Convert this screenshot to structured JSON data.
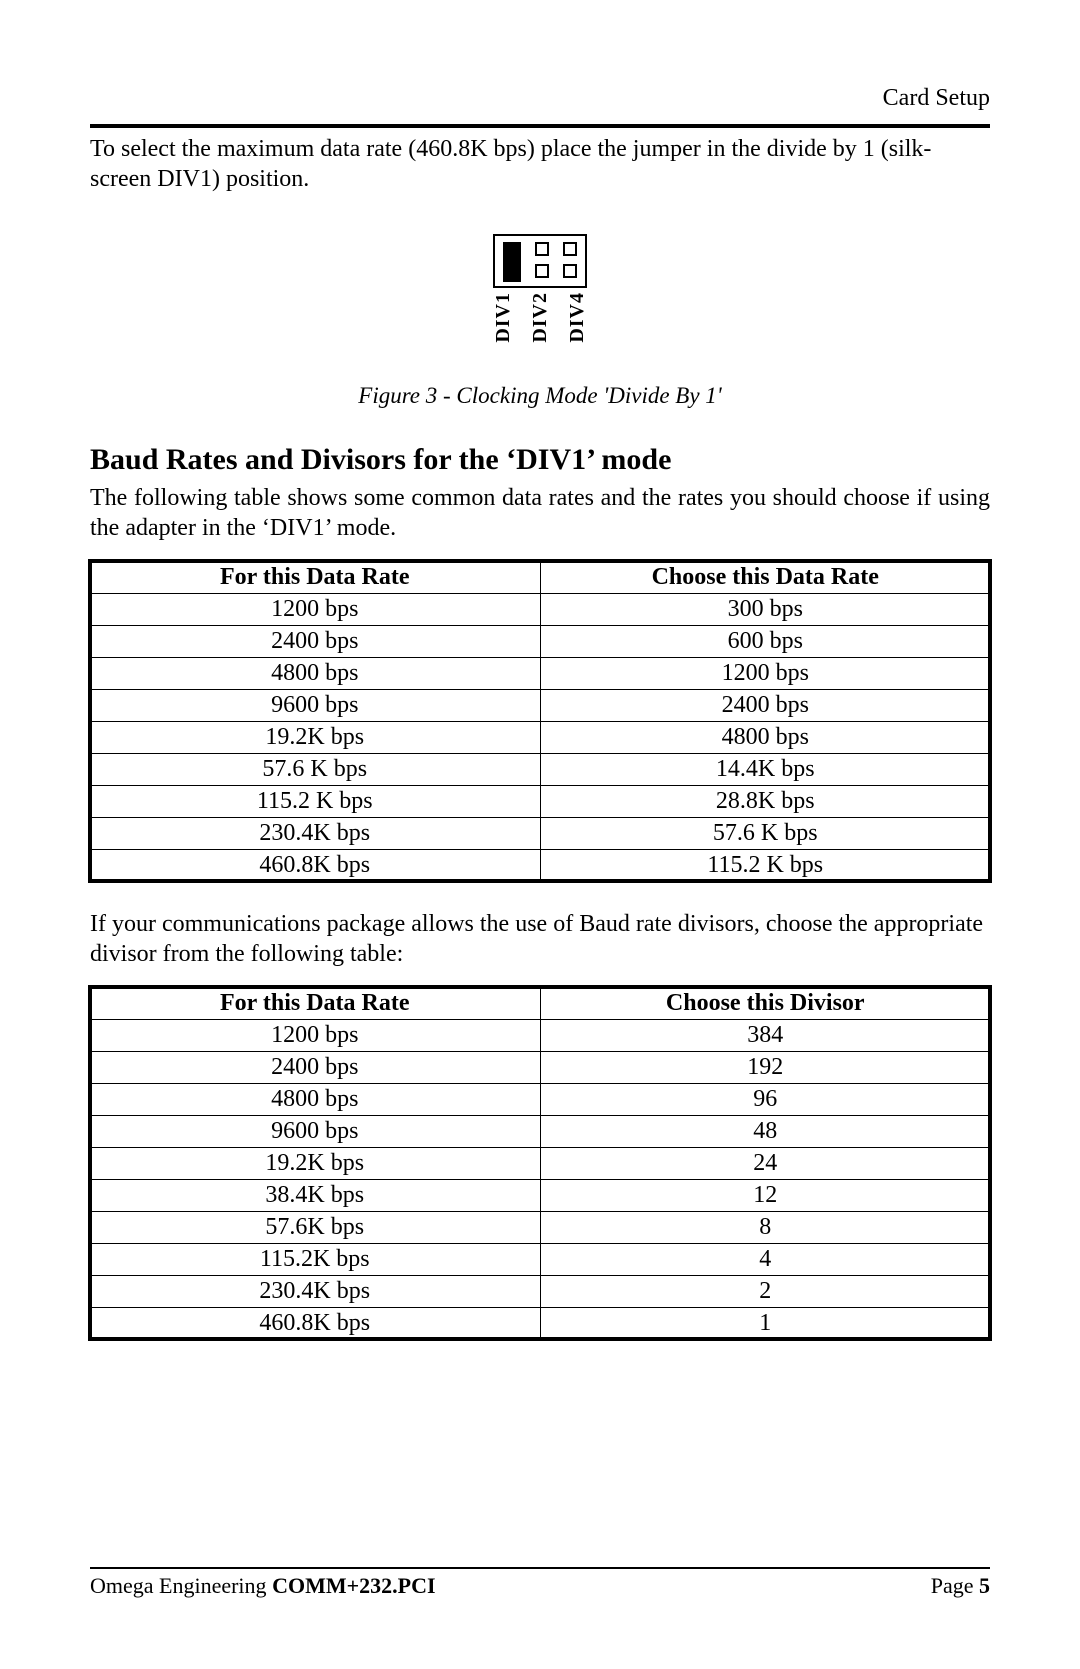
{
  "header": {
    "section": "Card Setup"
  },
  "intro_text": "To select the maximum data rate (460.8K bps) place the jumper in the divide by 1 (silk-screen DIV1) position.",
  "jumper": {
    "labels": [
      "DIV1",
      "DIV2",
      "DIV4"
    ],
    "selected_index": 0
  },
  "figure_caption": "Figure 3 - Clocking Mode 'Divide By 1'",
  "section_heading": "Baud Rates and Divisors for the ‘DIV1’ mode",
  "section_text": "The following table shows some common data rates and the rates you should choose if using the adapter in the ‘DIV1’ mode.",
  "table1": {
    "columns": [
      "For this Data Rate",
      "Choose this Data Rate"
    ],
    "rows": [
      [
        "1200 bps",
        "300 bps"
      ],
      [
        "2400 bps",
        "600 bps"
      ],
      [
        "4800 bps",
        "1200 bps"
      ],
      [
        "9600 bps",
        "2400 bps"
      ],
      [
        "19.2K bps",
        "4800 bps"
      ],
      [
        "57.6 K bps",
        "14.4K bps"
      ],
      [
        "115.2 K bps",
        "28.8K bps"
      ],
      [
        "230.4K bps",
        "57.6 K bps"
      ],
      [
        "460.8K bps",
        "115.2 K bps"
      ]
    ]
  },
  "mid_text": "If your communications package allows the use of Baud rate divisors, choose the appropriate divisor from the following table:",
  "table2": {
    "columns": [
      "For this Data Rate",
      "Choose this Divisor"
    ],
    "rows": [
      [
        "1200 bps",
        "384"
      ],
      [
        "2400 bps",
        "192"
      ],
      [
        "4800 bps",
        "96"
      ],
      [
        "9600 bps",
        "48"
      ],
      [
        "19.2K bps",
        "24"
      ],
      [
        "38.4K bps",
        "12"
      ],
      [
        "57.6K bps",
        "8"
      ],
      [
        "115.2K bps",
        "4"
      ],
      [
        "230.4K bps",
        "2"
      ],
      [
        "460.8K bps",
        "1"
      ]
    ]
  },
  "footer": {
    "vendor": "Omega Engineering ",
    "product": "COMM+232.PCI",
    "page_label": "Page ",
    "page_number": "5"
  }
}
